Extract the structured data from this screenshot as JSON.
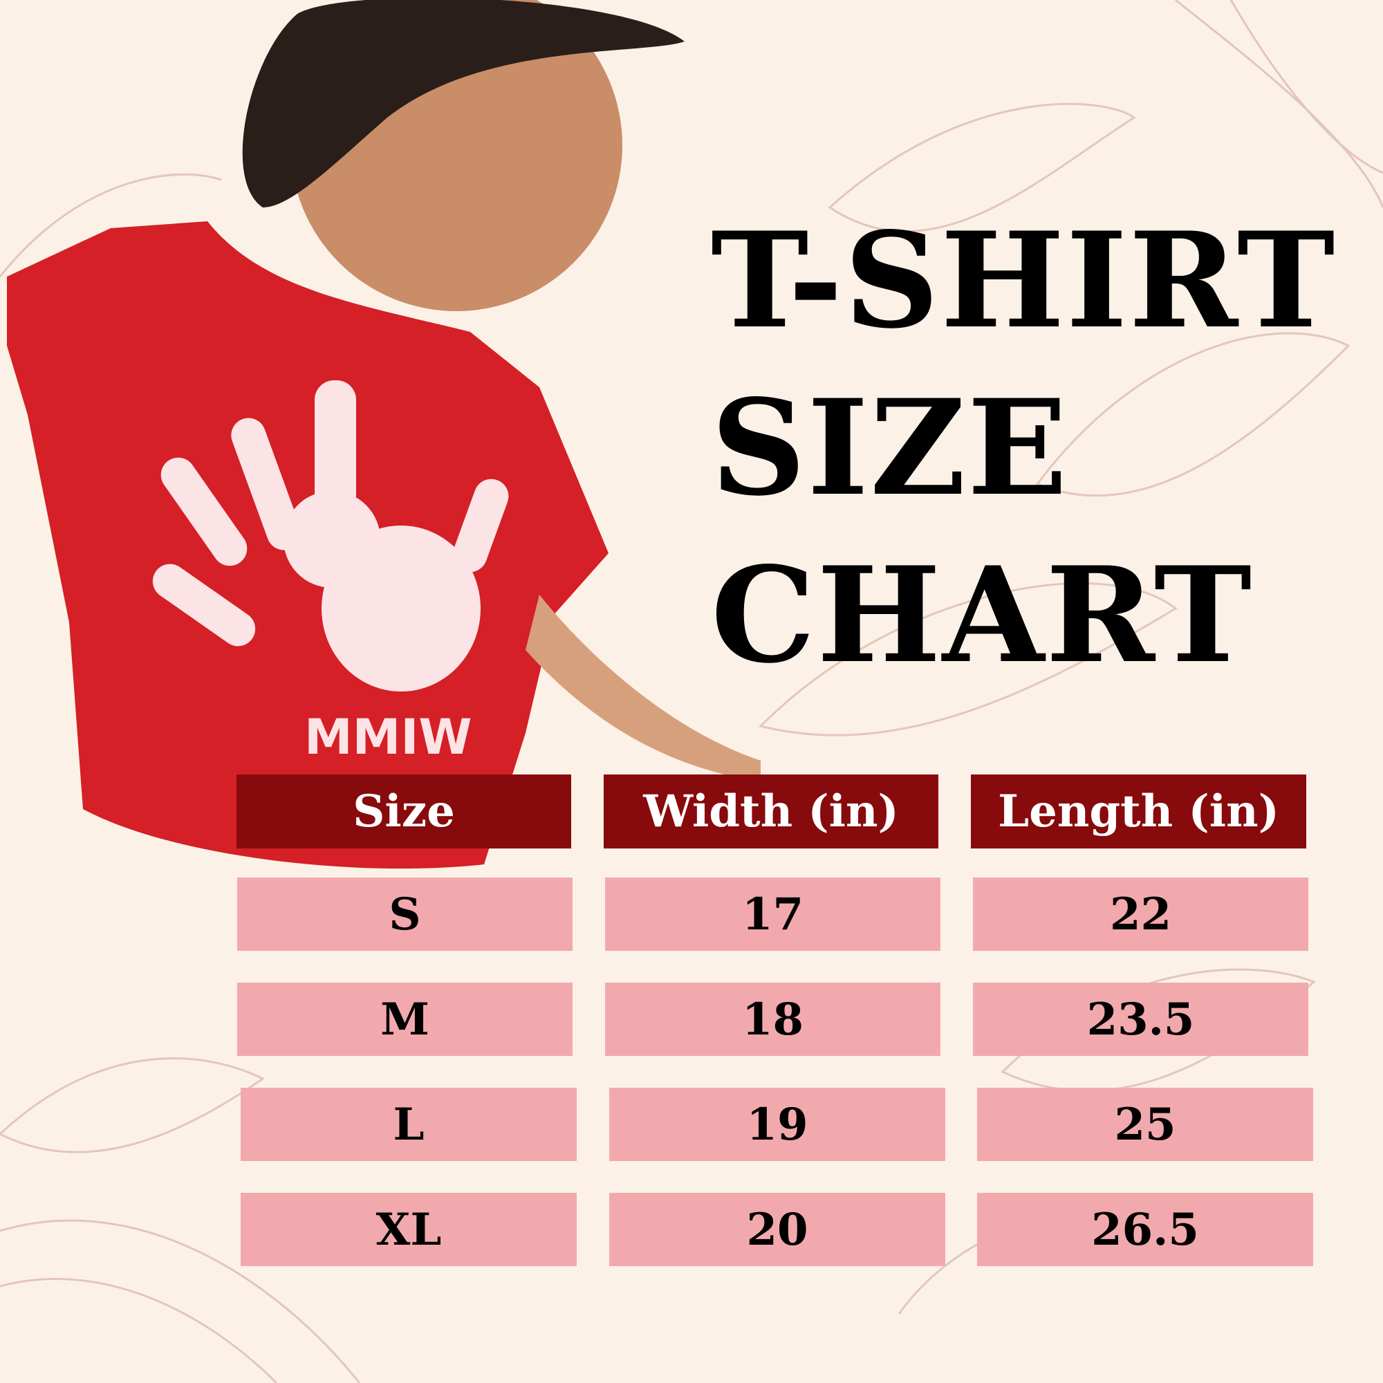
{
  "title": {
    "line1": "T-SHIRT",
    "line2": "SIZE",
    "line3": "CHART"
  },
  "shirt_print": "MMIW",
  "colors": {
    "background": "#fcf1e6",
    "header": "#870a0d",
    "row": "#f2a9ad",
    "shirt": "#d42026"
  },
  "table": {
    "headers": [
      "Size",
      "Width (in)",
      "Length (in)"
    ],
    "rows": [
      [
        "S",
        "17",
        "22"
      ],
      [
        "M",
        "18",
        "23.5"
      ],
      [
        "L",
        "19",
        "25"
      ],
      [
        "XL",
        "20",
        "26.5"
      ]
    ]
  }
}
